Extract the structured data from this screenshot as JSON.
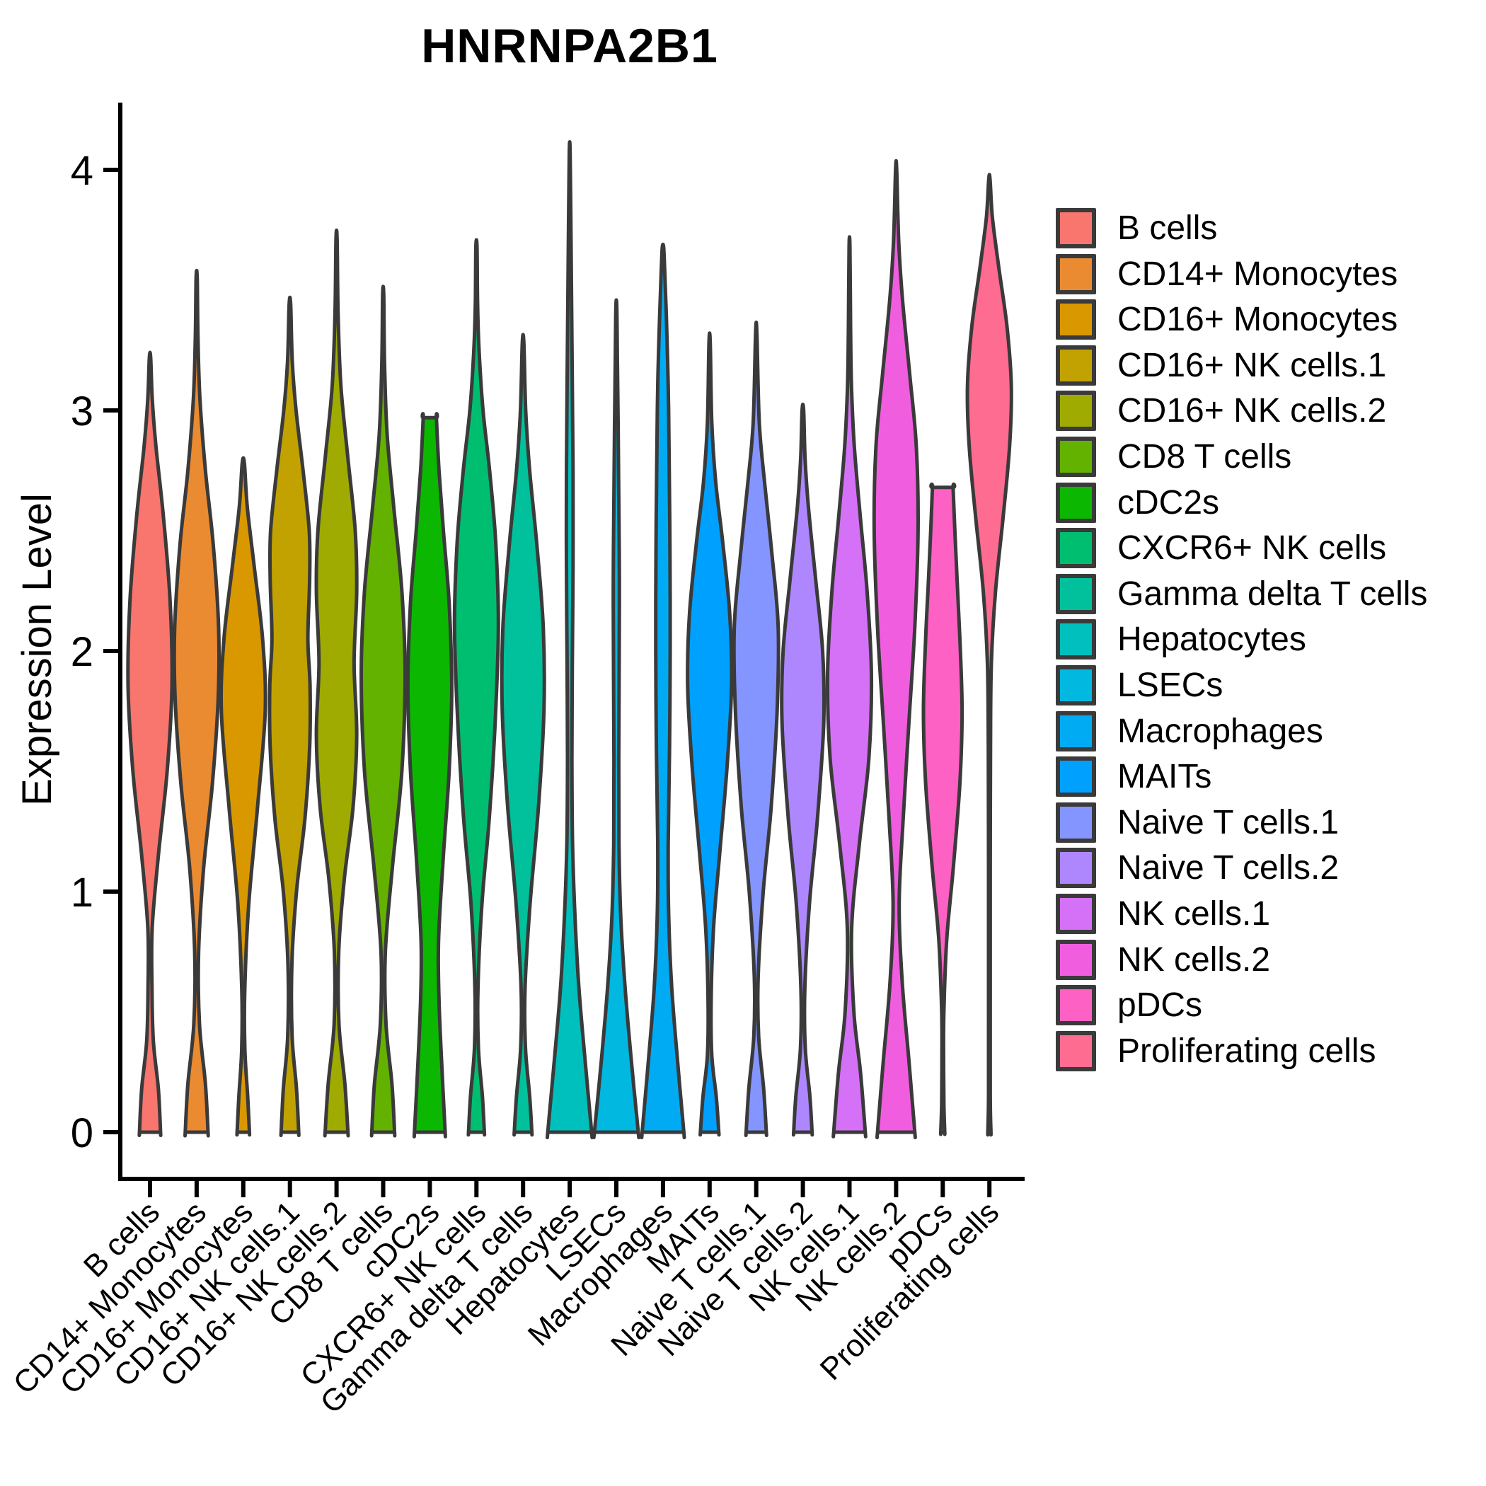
{
  "title": "HNRNPA2B1",
  "y_axis": {
    "label": "Expression Level",
    "ticks": [
      "0",
      "1",
      "2",
      "3",
      "4"
    ]
  },
  "chart_data": {
    "type": "violin",
    "title": "HNRNPA2B1",
    "ylabel": "Expression Level",
    "ylim": [
      0,
      4.35
    ],
    "yticks": [
      0,
      1,
      2,
      3,
      4
    ],
    "grid": false,
    "legend_position": "right",
    "categories": [
      "B cells",
      "CD14+ Monocytes",
      "CD16+ Monocytes",
      "CD16+ NK cells.1",
      "CD16+ NK cells.2",
      "CD8 T cells",
      "cDC2s",
      "CXCR6+ NK cells",
      "Gamma delta T cells",
      "Hepatocytes",
      "LSECs",
      "Macrophages",
      "MAITs",
      "Naive T cells.1",
      "Naive T cells.2",
      "NK cells.1",
      "NK cells.2",
      "pDCs",
      "Proliferating cells"
    ],
    "series": [
      {
        "name": "B cells",
        "color": "#F8766D",
        "max_expression": 3.22,
        "mode_expression": 1.9,
        "flat_top": false,
        "profile": [
          [
            0,
            0.48
          ],
          [
            0.18,
            0.38
          ],
          [
            0.38,
            0.15
          ],
          [
            0.6,
            0.09
          ],
          [
            0.85,
            0.1
          ],
          [
            1.15,
            0.38
          ],
          [
            1.5,
            0.78
          ],
          [
            1.85,
            1.0
          ],
          [
            2.2,
            0.92
          ],
          [
            2.55,
            0.62
          ],
          [
            2.85,
            0.27
          ],
          [
            3.05,
            0.1
          ],
          [
            3.22,
            0.03
          ]
        ]
      },
      {
        "name": "CD14+ Monocytes",
        "color": "#EA8A31",
        "max_expression": 3.55,
        "mode_expression": 2.0,
        "flat_top": false,
        "profile": [
          [
            0,
            0.52
          ],
          [
            0.2,
            0.4
          ],
          [
            0.45,
            0.13
          ],
          [
            0.75,
            0.09
          ],
          [
            1.1,
            0.32
          ],
          [
            1.45,
            0.72
          ],
          [
            1.8,
            0.98
          ],
          [
            2.1,
            1.0
          ],
          [
            2.45,
            0.75
          ],
          [
            2.75,
            0.4
          ],
          [
            3.05,
            0.15
          ],
          [
            3.3,
            0.06
          ],
          [
            3.55,
            0.025
          ]
        ]
      },
      {
        "name": "CD16+ Monocytes",
        "color": "#D99800",
        "max_expression": 2.78,
        "mode_expression": 1.75,
        "flat_top": false,
        "profile": [
          [
            0,
            0.28
          ],
          [
            0.15,
            0.2
          ],
          [
            0.35,
            0.07
          ],
          [
            0.6,
            0.07
          ],
          [
            0.95,
            0.25
          ],
          [
            1.35,
            0.65
          ],
          [
            1.75,
            1.0
          ],
          [
            2.05,
            0.88
          ],
          [
            2.35,
            0.5
          ],
          [
            2.6,
            0.18
          ],
          [
            2.78,
            0.05
          ]
        ]
      },
      {
        "name": "CD16+ NK cells.1",
        "color": "#C2A200",
        "max_expression": 3.44,
        "mode_expression": 1.85,
        "flat_top": false,
        "profile": [
          [
            0,
            0.4
          ],
          [
            0.18,
            0.3
          ],
          [
            0.4,
            0.1
          ],
          [
            0.7,
            0.09
          ],
          [
            1.0,
            0.3
          ],
          [
            1.3,
            0.68
          ],
          [
            1.6,
            0.9
          ],
          [
            1.85,
            0.92
          ],
          [
            2.05,
            0.82
          ],
          [
            2.3,
            0.9
          ],
          [
            2.5,
            0.88
          ],
          [
            2.75,
            0.6
          ],
          [
            3.0,
            0.28
          ],
          [
            3.2,
            0.11
          ],
          [
            3.44,
            0.035
          ]
        ]
      },
      {
        "name": "CD16+ NK cells.2",
        "color": "#9FAB00",
        "max_expression": 3.71,
        "mode_expression": 1.65,
        "flat_top": false,
        "profile": [
          [
            0,
            0.52
          ],
          [
            0.2,
            0.38
          ],
          [
            0.45,
            0.11
          ],
          [
            0.75,
            0.1
          ],
          [
            1.05,
            0.35
          ],
          [
            1.35,
            0.75
          ],
          [
            1.65,
            0.92
          ],
          [
            1.95,
            0.8
          ],
          [
            2.25,
            0.92
          ],
          [
            2.5,
            0.85
          ],
          [
            2.8,
            0.52
          ],
          [
            3.1,
            0.2
          ],
          [
            3.4,
            0.07
          ],
          [
            3.71,
            0.025
          ]
        ]
      },
      {
        "name": "CD8 T cells",
        "color": "#64B200",
        "max_expression": 3.48,
        "mode_expression": 1.9,
        "flat_top": false,
        "profile": [
          [
            0,
            0.52
          ],
          [
            0.2,
            0.4
          ],
          [
            0.45,
            0.13
          ],
          [
            0.75,
            0.1
          ],
          [
            1.1,
            0.42
          ],
          [
            1.5,
            0.85
          ],
          [
            1.9,
            1.0
          ],
          [
            2.25,
            0.85
          ],
          [
            2.6,
            0.48
          ],
          [
            2.9,
            0.18
          ],
          [
            3.2,
            0.06
          ],
          [
            3.48,
            0.025
          ]
        ]
      },
      {
        "name": "cDC2s",
        "color": "#0CB702",
        "max_expression": 2.97,
        "mode_expression": 1.85,
        "flat_top": true,
        "profile": [
          [
            0,
            0.7
          ],
          [
            0.25,
            0.56
          ],
          [
            0.55,
            0.42
          ],
          [
            0.8,
            0.4
          ],
          [
            1.15,
            0.62
          ],
          [
            1.5,
            0.88
          ],
          [
            1.85,
            1.0
          ],
          [
            2.2,
            0.88
          ],
          [
            2.5,
            0.62
          ],
          [
            2.75,
            0.42
          ],
          [
            2.97,
            0.3
          ]
        ]
      },
      {
        "name": "CXCR6+ NK cells",
        "color": "#00BE70",
        "max_expression": 3.68,
        "mode_expression": 2.1,
        "flat_top": false,
        "profile": [
          [
            0,
            0.36
          ],
          [
            0.15,
            0.27
          ],
          [
            0.35,
            0.09
          ],
          [
            0.6,
            0.07
          ],
          [
            0.95,
            0.25
          ],
          [
            1.3,
            0.58
          ],
          [
            1.7,
            0.85
          ],
          [
            2.1,
            1.0
          ],
          [
            2.45,
            0.88
          ],
          [
            2.75,
            0.6
          ],
          [
            3.0,
            0.3
          ],
          [
            3.25,
            0.12
          ],
          [
            3.45,
            0.05
          ],
          [
            3.68,
            0.025
          ]
        ]
      },
      {
        "name": "Gamma delta T cells",
        "color": "#00C19C",
        "max_expression": 3.28,
        "mode_expression": 1.9,
        "flat_top": false,
        "profile": [
          [
            0,
            0.4
          ],
          [
            0.15,
            0.3
          ],
          [
            0.35,
            0.11
          ],
          [
            0.6,
            0.09
          ],
          [
            0.95,
            0.32
          ],
          [
            1.35,
            0.7
          ],
          [
            1.75,
            0.95
          ],
          [
            2.1,
            0.92
          ],
          [
            2.45,
            0.62
          ],
          [
            2.75,
            0.3
          ],
          [
            3.0,
            0.12
          ],
          [
            3.28,
            0.035
          ]
        ]
      },
      {
        "name": "Hepatocytes",
        "color": "#00C0BE",
        "max_expression": 4.07,
        "mode_expression": 0.0,
        "flat_top": false,
        "profile": [
          [
            0,
            1.0
          ],
          [
            0.3,
            0.7
          ],
          [
            0.6,
            0.42
          ],
          [
            0.9,
            0.24
          ],
          [
            1.2,
            0.13
          ],
          [
            1.55,
            0.1
          ],
          [
            1.95,
            0.12
          ],
          [
            2.35,
            0.15
          ],
          [
            2.75,
            0.15
          ],
          [
            3.1,
            0.12
          ],
          [
            3.4,
            0.09
          ],
          [
            3.7,
            0.06
          ],
          [
            4.07,
            0.02
          ]
        ]
      },
      {
        "name": "LSECs",
        "color": "#00B8E0",
        "max_expression": 3.43,
        "mode_expression": 0.0,
        "flat_top": false,
        "profile": [
          [
            0,
            1.0
          ],
          [
            0.3,
            0.68
          ],
          [
            0.6,
            0.4
          ],
          [
            0.9,
            0.2
          ],
          [
            1.2,
            0.12
          ],
          [
            1.55,
            0.11
          ],
          [
            1.95,
            0.13
          ],
          [
            2.3,
            0.14
          ],
          [
            2.65,
            0.11
          ],
          [
            2.95,
            0.08
          ],
          [
            3.2,
            0.05
          ],
          [
            3.43,
            0.02
          ]
        ]
      },
      {
        "name": "Macrophages",
        "color": "#00ABF4",
        "max_expression": 3.68,
        "mode_expression": 0.0,
        "flat_top": false,
        "profile": [
          [
            0,
            0.95
          ],
          [
            0.3,
            0.66
          ],
          [
            0.6,
            0.4
          ],
          [
            0.9,
            0.26
          ],
          [
            1.2,
            0.24
          ],
          [
            1.6,
            0.3
          ],
          [
            2.0,
            0.33
          ],
          [
            2.4,
            0.32
          ],
          [
            2.8,
            0.28
          ],
          [
            3.1,
            0.24
          ],
          [
            3.4,
            0.15
          ],
          [
            3.6,
            0.07
          ],
          [
            3.68,
            0.03
          ]
        ]
      },
      {
        "name": "MAITs",
        "color": "#00A0FF",
        "max_expression": 3.28,
        "mode_expression": 1.85,
        "flat_top": false,
        "profile": [
          [
            0,
            0.42
          ],
          [
            0.15,
            0.3
          ],
          [
            0.32,
            0.1
          ],
          [
            0.55,
            0.07
          ],
          [
            0.85,
            0.18
          ],
          [
            1.15,
            0.45
          ],
          [
            1.5,
            0.78
          ],
          [
            1.85,
            1.0
          ],
          [
            2.15,
            0.92
          ],
          [
            2.45,
            0.6
          ],
          [
            2.7,
            0.28
          ],
          [
            2.95,
            0.1
          ],
          [
            3.28,
            0.03
          ]
        ]
      },
      {
        "name": "Naive T cells.1",
        "color": "#8495FF",
        "max_expression": 3.32,
        "mode_expression": 2.1,
        "flat_top": false,
        "profile": [
          [
            0,
            0.46
          ],
          [
            0.18,
            0.34
          ],
          [
            0.4,
            0.11
          ],
          [
            0.65,
            0.09
          ],
          [
            1.0,
            0.32
          ],
          [
            1.35,
            0.68
          ],
          [
            1.75,
            0.95
          ],
          [
            2.1,
            1.0
          ],
          [
            2.4,
            0.72
          ],
          [
            2.7,
            0.38
          ],
          [
            2.95,
            0.14
          ],
          [
            3.32,
            0.03
          ]
        ]
      },
      {
        "name": "Naive T cells.2",
        "color": "#AE87FF",
        "max_expression": 3.0,
        "mode_expression": 1.7,
        "flat_top": false,
        "profile": [
          [
            0,
            0.42
          ],
          [
            0.15,
            0.32
          ],
          [
            0.35,
            0.11
          ],
          [
            0.6,
            0.09
          ],
          [
            0.95,
            0.3
          ],
          [
            1.3,
            0.66
          ],
          [
            1.7,
            0.95
          ],
          [
            2.0,
            0.9
          ],
          [
            2.3,
            0.58
          ],
          [
            2.6,
            0.25
          ],
          [
            2.8,
            0.1
          ],
          [
            3.0,
            0.035
          ]
        ]
      },
      {
        "name": "NK cells.1",
        "color": "#D471F6",
        "max_expression": 3.68,
        "mode_expression": 1.9,
        "flat_top": false,
        "profile": [
          [
            0,
            0.72
          ],
          [
            0.25,
            0.5
          ],
          [
            0.5,
            0.2
          ],
          [
            0.85,
            0.1
          ],
          [
            1.2,
            0.45
          ],
          [
            1.55,
            0.88
          ],
          [
            1.9,
            1.0
          ],
          [
            2.25,
            0.8
          ],
          [
            2.55,
            0.5
          ],
          [
            2.85,
            0.22
          ],
          [
            3.1,
            0.09
          ],
          [
            3.35,
            0.05
          ],
          [
            3.68,
            0.02
          ]
        ]
      },
      {
        "name": "NK cells.2",
        "color": "#F05EDF",
        "max_expression": 4.0,
        "mode_expression": 2.5,
        "flat_top": false,
        "profile": [
          [
            0,
            0.85
          ],
          [
            0.3,
            0.58
          ],
          [
            0.62,
            0.28
          ],
          [
            0.95,
            0.14
          ],
          [
            1.3,
            0.32
          ],
          [
            1.7,
            0.58
          ],
          [
            2.1,
            0.85
          ],
          [
            2.5,
            1.0
          ],
          [
            2.85,
            0.92
          ],
          [
            3.15,
            0.62
          ],
          [
            3.45,
            0.3
          ],
          [
            3.7,
            0.12
          ],
          [
            4.0,
            0.025
          ]
        ]
      },
      {
        "name": "pDCs",
        "color": "#FD61C4",
        "max_expression": 2.68,
        "mode_expression": 1.75,
        "flat_top": true,
        "profile": [
          [
            0,
            0.09
          ],
          [
            0.12,
            0.05
          ],
          [
            0.3,
            0.04
          ],
          [
            0.5,
            0.05
          ],
          [
            0.8,
            0.18
          ],
          [
            1.1,
            0.48
          ],
          [
            1.45,
            0.78
          ],
          [
            1.75,
            0.88
          ],
          [
            2.05,
            0.78
          ],
          [
            2.3,
            0.65
          ],
          [
            2.5,
            0.55
          ],
          [
            2.68,
            0.47
          ]
        ]
      },
      {
        "name": "Proliferating cells",
        "color": "#FF6C92",
        "max_expression": 3.96,
        "mode_expression": 3.05,
        "flat_top": false,
        "profile": [
          [
            0,
            0.07
          ],
          [
            0.15,
            0.04
          ],
          [
            0.6,
            0.04
          ],
          [
            1.1,
            0.04
          ],
          [
            1.6,
            0.05
          ],
          [
            1.95,
            0.09
          ],
          [
            2.25,
            0.28
          ],
          [
            2.55,
            0.62
          ],
          [
            2.85,
            0.92
          ],
          [
            3.1,
            1.0
          ],
          [
            3.35,
            0.8
          ],
          [
            3.6,
            0.42
          ],
          [
            3.8,
            0.14
          ],
          [
            3.96,
            0.03
          ]
        ]
      }
    ]
  }
}
